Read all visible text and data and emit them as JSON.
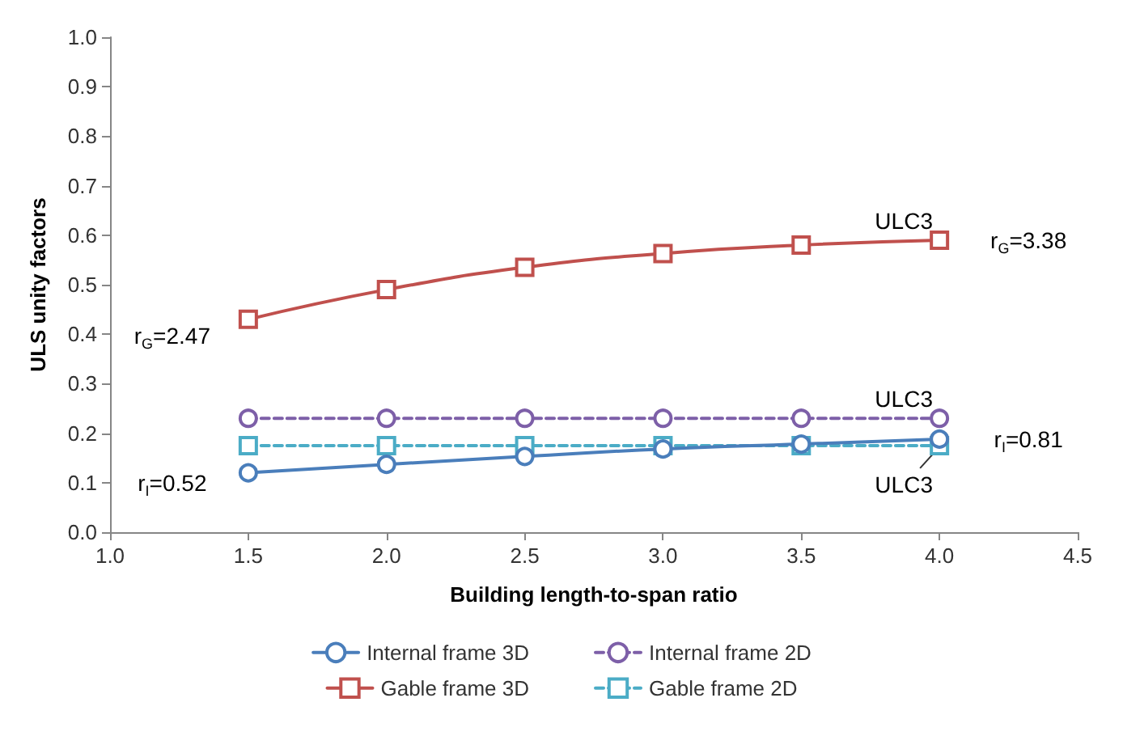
{
  "chart_data": {
    "type": "line",
    "xlabel": "Building length-to-span ratio",
    "ylabel": "ULS unity factors",
    "x": [
      1.5,
      2.0,
      2.5,
      3.0,
      3.5,
      4.0
    ],
    "series": [
      {
        "name": "Internal frame 3D",
        "color": "#4a7ebb",
        "values": [
          0.12,
          0.137,
          0.153,
          0.168,
          0.178,
          0.188
        ],
        "marker": "circle",
        "line_style": "solid"
      },
      {
        "name": "Internal frame 2D",
        "color": "#7d5fa8",
        "values": [
          0.23,
          0.23,
          0.23,
          0.23,
          0.23,
          0.23
        ],
        "marker": "circle",
        "line_style": "dashed"
      },
      {
        "name": "Gable frame 3D",
        "color": "#c0504d",
        "values": [
          0.43,
          0.49,
          0.535,
          0.563,
          0.58,
          0.59
        ],
        "marker": "square",
        "line_style": "solid"
      },
      {
        "name": "Gable frame 2D",
        "color": "#4bacc6",
        "values": [
          0.175,
          0.175,
          0.175,
          0.175,
          0.175,
          0.175
        ],
        "marker": "square",
        "line_style": "dashed"
      }
    ],
    "xlim": [
      1.0,
      4.5
    ],
    "xticks": [
      {
        "value": 1,
        "label": "1.0"
      },
      1.5,
      {
        "value": 2,
        "label": "2.0"
      },
      2.5,
      {
        "value": 3,
        "label": "3.0"
      },
      3.5,
      {
        "value": 4,
        "label": "4.0"
      },
      4.5
    ],
    "ylim": [
      0,
      1
    ],
    "yticks": [
      {
        "value": 0,
        "label": "0.0"
      },
      0.1,
      0.2,
      0.3,
      0.4,
      0.5,
      0.6,
      0.7,
      0.8,
      0.9,
      {
        "value": 1,
        "label": "1.0"
      }
    ],
    "grid": false,
    "legend": "bottom",
    "annotations": [
      "r$_{G}$=2.47",
      "r$_{G}$=3.38",
      "r$_{I}$=0.52",
      "r$_{I}$=0.81",
      "ULC3",
      "ULC3",
      "ULC3"
    ]
  }
}
